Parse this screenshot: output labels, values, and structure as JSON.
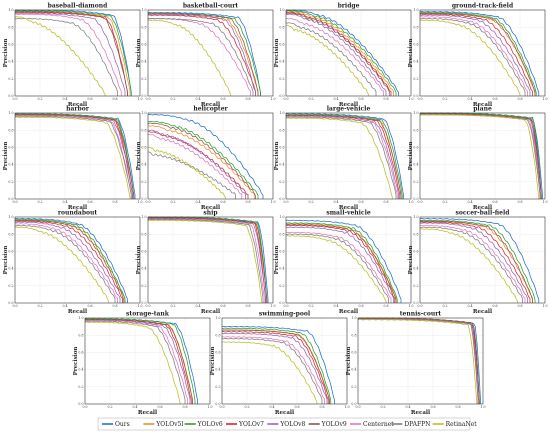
{
  "chart_data": {
    "type": "line",
    "xlabel": "Recall",
    "ylabel": "Precision",
    "xlim": [
      0,
      1.0
    ],
    "ylim": [
      0,
      1.0
    ],
    "ticks": [
      "0.0",
      "0.2",
      "0.4",
      "0.6",
      "0.8",
      "1.0"
    ],
    "grid": true,
    "legend_position": "bottom",
    "series_names": [
      "Ours",
      "YOLOv5l",
      "YOLOv6",
      "YOLOv7",
      "YOLOv8",
      "YOLOv9",
      "Centernet",
      "DPAFPN",
      "RetinaNet"
    ],
    "series_colors": [
      "#1f6fd0",
      "#f28e2b",
      "#2ca02c",
      "#d62728",
      "#9467bd",
      "#8c564b",
      "#e377c2",
      "#7f7f7f",
      "#bcbd22"
    ],
    "panels": [
      {
        "title": "baseball-diamond",
        "curves": [
          {
            "p0": 1.0,
            "r1": 0.78,
            "rmax": 0.93,
            "pend": 0.05
          },
          {
            "p0": 0.98,
            "r1": 0.74,
            "rmax": 0.92,
            "pend": 0.05
          },
          {
            "p0": 0.99,
            "r1": 0.76,
            "rmax": 0.93,
            "pend": 0.05
          },
          {
            "p0": 0.97,
            "r1": 0.72,
            "rmax": 0.9,
            "pend": 0.05
          },
          {
            "p0": 0.96,
            "r1": 0.62,
            "rmax": 0.88,
            "pend": 0.05
          },
          {
            "p0": 0.98,
            "r1": 0.7,
            "rmax": 0.9,
            "pend": 0.05
          },
          {
            "p0": 0.95,
            "r1": 0.52,
            "rmax": 0.85,
            "pend": 0.05
          },
          {
            "p0": 0.9,
            "r1": 0.45,
            "rmax": 0.82,
            "pend": 0.05
          },
          {
            "p0": 0.92,
            "r1": 0.12,
            "rmax": 0.72,
            "pend": 0.03
          }
        ]
      },
      {
        "title": "basketball-court",
        "curves": [
          {
            "p0": 0.97,
            "r1": 0.72,
            "rmax": 0.9,
            "pend": 0.05
          },
          {
            "p0": 0.95,
            "r1": 0.62,
            "rmax": 0.88,
            "pend": 0.05
          },
          {
            "p0": 0.96,
            "r1": 0.68,
            "rmax": 0.9,
            "pend": 0.05
          },
          {
            "p0": 0.94,
            "r1": 0.55,
            "rmax": 0.86,
            "pend": 0.05
          },
          {
            "p0": 0.95,
            "r1": 0.6,
            "rmax": 0.86,
            "pend": 0.05
          },
          {
            "p0": 0.96,
            "r1": 0.65,
            "rmax": 0.88,
            "pend": 0.05
          },
          {
            "p0": 0.9,
            "r1": 0.4,
            "rmax": 0.82,
            "pend": 0.05
          },
          {
            "p0": 0.9,
            "r1": 0.5,
            "rmax": 0.84,
            "pend": 0.05
          },
          {
            "p0": 0.88,
            "r1": 0.22,
            "rmax": 0.66,
            "pend": 0.03
          }
        ]
      },
      {
        "title": "bridge",
        "curves": [
          {
            "p0": 1.0,
            "r1": 0.25,
            "rmax": 0.9,
            "pend": 0.05
          },
          {
            "p0": 0.98,
            "r1": 0.2,
            "rmax": 0.86,
            "pend": 0.05
          },
          {
            "p0": 0.99,
            "r1": 0.22,
            "rmax": 0.88,
            "pend": 0.05
          },
          {
            "p0": 0.97,
            "r1": 0.18,
            "rmax": 0.84,
            "pend": 0.05
          },
          {
            "p0": 0.95,
            "r1": 0.15,
            "rmax": 0.8,
            "pend": 0.05
          },
          {
            "p0": 0.96,
            "r1": 0.17,
            "rmax": 0.83,
            "pend": 0.05
          },
          {
            "p0": 0.9,
            "r1": 0.12,
            "rmax": 0.78,
            "pend": 0.05
          },
          {
            "p0": 0.85,
            "r1": 0.1,
            "rmax": 0.72,
            "pend": 0.05
          },
          {
            "p0": 0.82,
            "r1": 0.06,
            "rmax": 0.66,
            "pend": 0.03
          }
        ]
      },
      {
        "title": "ground-track-field",
        "curves": [
          {
            "p0": 0.98,
            "r1": 0.62,
            "rmax": 0.95,
            "pend": 0.05
          },
          {
            "p0": 0.96,
            "r1": 0.55,
            "rmax": 0.92,
            "pend": 0.05
          },
          {
            "p0": 0.97,
            "r1": 0.58,
            "rmax": 0.93,
            "pend": 0.05
          },
          {
            "p0": 0.95,
            "r1": 0.5,
            "rmax": 0.9,
            "pend": 0.05
          },
          {
            "p0": 0.94,
            "r1": 0.45,
            "rmax": 0.88,
            "pend": 0.05
          },
          {
            "p0": 0.96,
            "r1": 0.56,
            "rmax": 0.92,
            "pend": 0.05
          },
          {
            "p0": 0.92,
            "r1": 0.4,
            "rmax": 0.86,
            "pend": 0.05
          },
          {
            "p0": 0.9,
            "r1": 0.38,
            "rmax": 0.84,
            "pend": 0.05
          },
          {
            "p0": 0.88,
            "r1": 0.3,
            "rmax": 0.8,
            "pend": 0.03
          }
        ]
      },
      {
        "title": "harbor",
        "curves": [
          {
            "p0": 0.99,
            "r1": 0.82,
            "rmax": 0.96,
            "pend": 0.05
          },
          {
            "p0": 0.98,
            "r1": 0.8,
            "rmax": 0.95,
            "pend": 0.05
          },
          {
            "p0": 0.99,
            "r1": 0.81,
            "rmax": 0.95,
            "pend": 0.05
          },
          {
            "p0": 0.98,
            "r1": 0.79,
            "rmax": 0.94,
            "pend": 0.05
          },
          {
            "p0": 0.97,
            "r1": 0.78,
            "rmax": 0.94,
            "pend": 0.05
          },
          {
            "p0": 0.98,
            "r1": 0.8,
            "rmax": 0.95,
            "pend": 0.05
          },
          {
            "p0": 0.97,
            "r1": 0.76,
            "rmax": 0.93,
            "pend": 0.05
          },
          {
            "p0": 0.96,
            "r1": 0.75,
            "rmax": 0.93,
            "pend": 0.05
          },
          {
            "p0": 0.95,
            "r1": 0.72,
            "rmax": 0.92,
            "pend": 0.03
          }
        ]
      },
      {
        "title": "helicopter",
        "curves": [
          {
            "p0": 0.98,
            "r1": 0.3,
            "rmax": 0.92,
            "pend": 0.05
          },
          {
            "p0": 0.85,
            "r1": 0.15,
            "rmax": 0.85,
            "pend": 0.05
          },
          {
            "p0": 0.9,
            "r1": 0.2,
            "rmax": 0.88,
            "pend": 0.05
          },
          {
            "p0": 0.78,
            "r1": 0.12,
            "rmax": 0.8,
            "pend": 0.05
          },
          {
            "p0": 0.8,
            "r1": 0.1,
            "rmax": 0.78,
            "pend": 0.05
          },
          {
            "p0": 0.88,
            "r1": 0.18,
            "rmax": 0.86,
            "pend": 0.05
          },
          {
            "p0": 0.75,
            "r1": 0.08,
            "rmax": 0.75,
            "pend": 0.05
          },
          {
            "p0": 0.55,
            "r1": 0.03,
            "rmax": 0.7,
            "pend": 0.05
          },
          {
            "p0": 0.6,
            "r1": 0.05,
            "rmax": 0.62,
            "pend": 0.03
          }
        ]
      },
      {
        "title": "large-vehicle",
        "curves": [
          {
            "p0": 0.99,
            "r1": 0.78,
            "rmax": 0.94,
            "pend": 0.05
          },
          {
            "p0": 0.98,
            "r1": 0.74,
            "rmax": 0.92,
            "pend": 0.05
          },
          {
            "p0": 0.98,
            "r1": 0.76,
            "rmax": 0.93,
            "pend": 0.05
          },
          {
            "p0": 0.97,
            "r1": 0.72,
            "rmax": 0.91,
            "pend": 0.05
          },
          {
            "p0": 0.96,
            "r1": 0.7,
            "rmax": 0.9,
            "pend": 0.05
          },
          {
            "p0": 0.97,
            "r1": 0.74,
            "rmax": 0.92,
            "pend": 0.05
          },
          {
            "p0": 0.96,
            "r1": 0.68,
            "rmax": 0.89,
            "pend": 0.05
          },
          {
            "p0": 0.95,
            "r1": 0.66,
            "rmax": 0.88,
            "pend": 0.05
          },
          {
            "p0": 0.94,
            "r1": 0.6,
            "rmax": 0.85,
            "pend": 0.03
          }
        ]
      },
      {
        "title": "plane",
        "curves": [
          {
            "p0": 1.0,
            "r1": 0.9,
            "rmax": 0.98,
            "pend": 0.05
          },
          {
            "p0": 0.99,
            "r1": 0.89,
            "rmax": 0.97,
            "pend": 0.05
          },
          {
            "p0": 1.0,
            "r1": 0.9,
            "rmax": 0.97,
            "pend": 0.05
          },
          {
            "p0": 0.99,
            "r1": 0.88,
            "rmax": 0.97,
            "pend": 0.05
          },
          {
            "p0": 0.99,
            "r1": 0.88,
            "rmax": 0.96,
            "pend": 0.05
          },
          {
            "p0": 0.99,
            "r1": 0.89,
            "rmax": 0.97,
            "pend": 0.05
          },
          {
            "p0": 0.98,
            "r1": 0.87,
            "rmax": 0.96,
            "pend": 0.05
          },
          {
            "p0": 0.98,
            "r1": 0.86,
            "rmax": 0.96,
            "pend": 0.05
          },
          {
            "p0": 0.98,
            "r1": 0.84,
            "rmax": 0.95,
            "pend": 0.03
          }
        ]
      },
      {
        "title": "roundabout",
        "curves": [
          {
            "p0": 0.98,
            "r1": 0.5,
            "rmax": 0.9,
            "pend": 0.05
          },
          {
            "p0": 0.96,
            "r1": 0.45,
            "rmax": 0.88,
            "pend": 0.05
          },
          {
            "p0": 0.97,
            "r1": 0.47,
            "rmax": 0.88,
            "pend": 0.05
          },
          {
            "p0": 0.95,
            "r1": 0.4,
            "rmax": 0.86,
            "pend": 0.05
          },
          {
            "p0": 0.94,
            "r1": 0.35,
            "rmax": 0.84,
            "pend": 0.05
          },
          {
            "p0": 0.96,
            "r1": 0.44,
            "rmax": 0.87,
            "pend": 0.05
          },
          {
            "p0": 0.92,
            "r1": 0.3,
            "rmax": 0.82,
            "pend": 0.05
          },
          {
            "p0": 0.9,
            "r1": 0.28,
            "rmax": 0.8,
            "pend": 0.05
          },
          {
            "p0": 0.88,
            "r1": 0.2,
            "rmax": 0.75,
            "pend": 0.03
          }
        ]
      },
      {
        "title": "ship",
        "curves": [
          {
            "p0": 1.0,
            "r1": 0.88,
            "rmax": 0.96,
            "pend": 0.05
          },
          {
            "p0": 0.99,
            "r1": 0.86,
            "rmax": 0.95,
            "pend": 0.05
          },
          {
            "p0": 1.0,
            "r1": 0.87,
            "rmax": 0.95,
            "pend": 0.05
          },
          {
            "p0": 0.99,
            "r1": 0.85,
            "rmax": 0.94,
            "pend": 0.05
          },
          {
            "p0": 0.98,
            "r1": 0.84,
            "rmax": 0.94,
            "pend": 0.05
          },
          {
            "p0": 0.99,
            "r1": 0.86,
            "rmax": 0.95,
            "pend": 0.05
          },
          {
            "p0": 0.97,
            "r1": 0.82,
            "rmax": 0.93,
            "pend": 0.05
          },
          {
            "p0": 0.97,
            "r1": 0.8,
            "rmax": 0.92,
            "pend": 0.05
          },
          {
            "p0": 0.96,
            "r1": 0.78,
            "rmax": 0.91,
            "pend": 0.03
          }
        ]
      },
      {
        "title": "small-vehicle",
        "curves": [
          {
            "p0": 0.96,
            "r1": 0.55,
            "rmax": 0.92,
            "pend": 0.05
          },
          {
            "p0": 0.92,
            "r1": 0.5,
            "rmax": 0.88,
            "pend": 0.05
          },
          {
            "p0": 0.93,
            "r1": 0.52,
            "rmax": 0.89,
            "pend": 0.05
          },
          {
            "p0": 0.9,
            "r1": 0.48,
            "rmax": 0.87,
            "pend": 0.05
          },
          {
            "p0": 0.88,
            "r1": 0.45,
            "rmax": 0.86,
            "pend": 0.05
          },
          {
            "p0": 0.91,
            "r1": 0.5,
            "rmax": 0.88,
            "pend": 0.05
          },
          {
            "p0": 0.82,
            "r1": 0.4,
            "rmax": 0.84,
            "pend": 0.05
          },
          {
            "p0": 0.8,
            "r1": 0.38,
            "rmax": 0.82,
            "pend": 0.05
          },
          {
            "p0": 0.78,
            "r1": 0.32,
            "rmax": 0.8,
            "pend": 0.03
          }
        ]
      },
      {
        "title": "soccer-ball-field",
        "curves": [
          {
            "p0": 0.98,
            "r1": 0.62,
            "rmax": 0.95,
            "pend": 0.05
          },
          {
            "p0": 0.95,
            "r1": 0.5,
            "rmax": 0.9,
            "pend": 0.05
          },
          {
            "p0": 0.96,
            "r1": 0.55,
            "rmax": 0.92,
            "pend": 0.05
          },
          {
            "p0": 0.94,
            "r1": 0.45,
            "rmax": 0.88,
            "pend": 0.05
          },
          {
            "p0": 0.93,
            "r1": 0.4,
            "rmax": 0.86,
            "pend": 0.05
          },
          {
            "p0": 0.95,
            "r1": 0.52,
            "rmax": 0.9,
            "pend": 0.05
          },
          {
            "p0": 0.9,
            "r1": 0.35,
            "rmax": 0.84,
            "pend": 0.05
          },
          {
            "p0": 0.88,
            "r1": 0.32,
            "rmax": 0.82,
            "pend": 0.05
          },
          {
            "p0": 0.86,
            "r1": 0.25,
            "rmax": 0.78,
            "pend": 0.03
          }
        ]
      },
      {
        "title": "storage-tank",
        "curves": [
          {
            "p0": 0.99,
            "r1": 0.72,
            "rmax": 0.9,
            "pend": 0.05
          },
          {
            "p0": 0.98,
            "r1": 0.66,
            "rmax": 0.86,
            "pend": 0.05
          },
          {
            "p0": 0.99,
            "r1": 0.7,
            "rmax": 0.88,
            "pend": 0.05
          },
          {
            "p0": 0.98,
            "r1": 0.64,
            "rmax": 0.85,
            "pend": 0.05
          },
          {
            "p0": 0.97,
            "r1": 0.62,
            "rmax": 0.84,
            "pend": 0.05
          },
          {
            "p0": 0.98,
            "r1": 0.66,
            "rmax": 0.86,
            "pend": 0.05
          },
          {
            "p0": 0.97,
            "r1": 0.58,
            "rmax": 0.82,
            "pend": 0.05
          },
          {
            "p0": 0.96,
            "r1": 0.56,
            "rmax": 0.8,
            "pend": 0.05
          },
          {
            "p0": 0.95,
            "r1": 0.5,
            "rmax": 0.76,
            "pend": 0.03
          }
        ]
      },
      {
        "title": "swimming-pool",
        "curves": [
          {
            "p0": 0.9,
            "r1": 0.68,
            "rmax": 0.9,
            "pend": 0.05
          },
          {
            "p0": 0.86,
            "r1": 0.6,
            "rmax": 0.86,
            "pend": 0.05
          },
          {
            "p0": 0.88,
            "r1": 0.63,
            "rmax": 0.87,
            "pend": 0.05
          },
          {
            "p0": 0.84,
            "r1": 0.58,
            "rmax": 0.85,
            "pend": 0.05
          },
          {
            "p0": 0.82,
            "r1": 0.55,
            "rmax": 0.84,
            "pend": 0.05
          },
          {
            "p0": 0.86,
            "r1": 0.6,
            "rmax": 0.86,
            "pend": 0.05
          },
          {
            "p0": 0.78,
            "r1": 0.5,
            "rmax": 0.82,
            "pend": 0.05
          },
          {
            "p0": 0.76,
            "r1": 0.48,
            "rmax": 0.8,
            "pend": 0.05
          },
          {
            "p0": 0.72,
            "r1": 0.4,
            "rmax": 0.76,
            "pend": 0.03
          }
        ]
      },
      {
        "title": "tennis-court",
        "curves": [
          {
            "p0": 1.0,
            "r1": 0.93,
            "rmax": 0.98,
            "pend": 0.05
          },
          {
            "p0": 1.0,
            "r1": 0.92,
            "rmax": 0.97,
            "pend": 0.05
          },
          {
            "p0": 1.0,
            "r1": 0.92,
            "rmax": 0.97,
            "pend": 0.05
          },
          {
            "p0": 0.99,
            "r1": 0.91,
            "rmax": 0.97,
            "pend": 0.05
          },
          {
            "p0": 0.99,
            "r1": 0.91,
            "rmax": 0.96,
            "pend": 0.05
          },
          {
            "p0": 1.0,
            "r1": 0.92,
            "rmax": 0.97,
            "pend": 0.05
          },
          {
            "p0": 0.99,
            "r1": 0.9,
            "rmax": 0.96,
            "pend": 0.05
          },
          {
            "p0": 0.99,
            "r1": 0.9,
            "rmax": 0.96,
            "pend": 0.05
          },
          {
            "p0": 0.98,
            "r1": 0.88,
            "rmax": 0.95,
            "pend": 0.03
          }
        ]
      }
    ]
  }
}
